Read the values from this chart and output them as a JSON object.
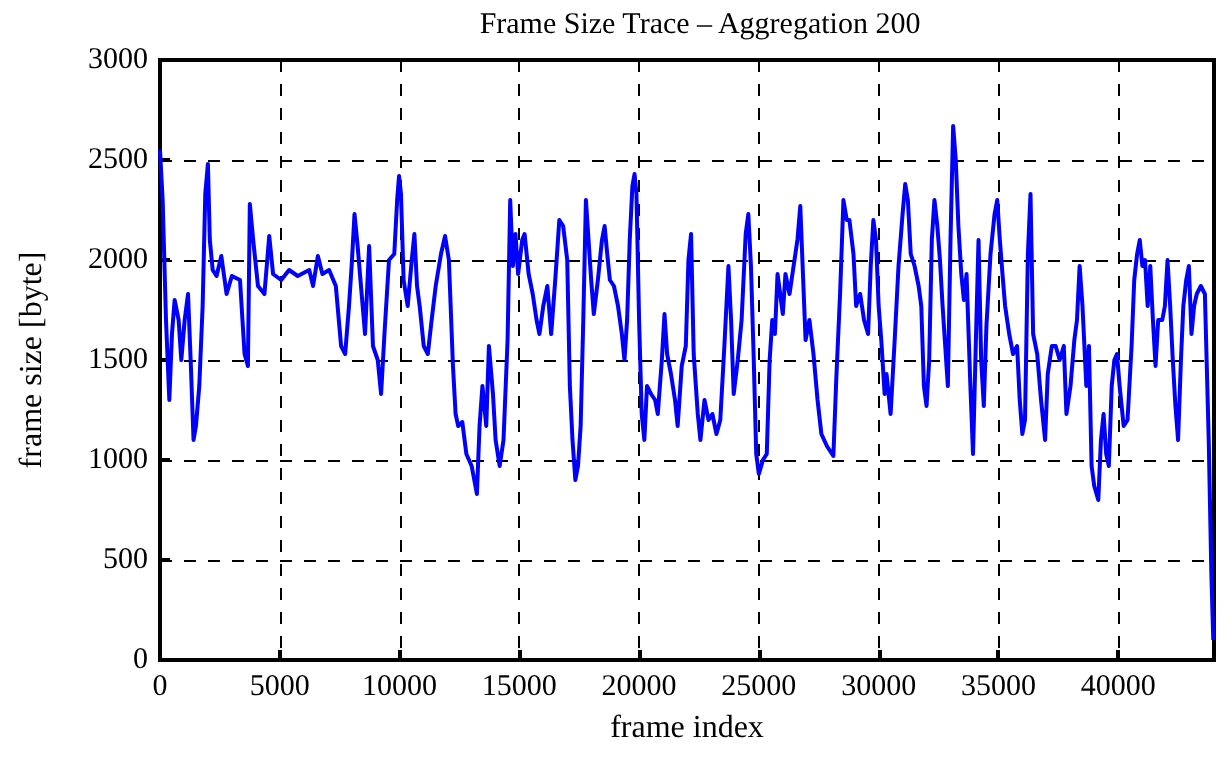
{
  "chart_data": {
    "type": "line",
    "title": "Frame Size Trace – Aggregation 200",
    "xlabel": "frame index",
    "ylabel": "frame size [byte]",
    "xlim": [
      0,
      44000
    ],
    "xticks": [
      0,
      5000,
      10000,
      15000,
      20000,
      25000,
      30000,
      35000,
      40000
    ],
    "ylim": [
      0,
      3000
    ],
    "yticks": [
      0,
      500,
      1000,
      1500,
      2000,
      2500,
      3000
    ],
    "grid": true,
    "marker": "none",
    "line_style": "solid",
    "series": [
      {
        "color": "#0000ff",
        "x": [
          0,
          111,
          250,
          389,
          500,
          611,
          778,
          889,
          1030,
          1170,
          1280,
          1400,
          1500,
          1640,
          1780,
          1890,
          2000,
          2080,
          2200,
          2360,
          2560,
          2780,
          3000,
          3340,
          3530,
          3670,
          3750,
          3890,
          4090,
          4360,
          4560,
          4720,
          5060,
          5390,
          5750,
          6230,
          6390,
          6590,
          6780,
          7060,
          7340,
          7560,
          7730,
          7890,
          8000,
          8120,
          8250,
          8390,
          8560,
          8730,
          8890,
          9090,
          9230,
          9370,
          9560,
          9780,
          9900,
          9980,
          10060,
          10170,
          10340,
          10510,
          10620,
          10730,
          10840,
          11010,
          11180,
          11340,
          11510,
          11730,
          11900,
          12060,
          12230,
          12340,
          12450,
          12620,
          12790,
          13010,
          13230,
          13340,
          13460,
          13620,
          13730,
          13900,
          14010,
          14180,
          14340,
          14510,
          14620,
          14730,
          14840,
          14950,
          15120,
          15220,
          15390,
          15560,
          15720,
          15840,
          16000,
          16170,
          16330,
          16500,
          16670,
          16830,
          17000,
          17110,
          17220,
          17340,
          17450,
          17560,
          17670,
          17780,
          17890,
          18000,
          18110,
          18280,
          18450,
          18560,
          18670,
          18780,
          18950,
          19120,
          19280,
          19390,
          19500,
          19610,
          19720,
          19810,
          19890,
          20000,
          20110,
          20220,
          20330,
          20500,
          20670,
          20780,
          20950,
          21060,
          21170,
          21330,
          21500,
          21610,
          21780,
          21950,
          22060,
          22170,
          22280,
          22450,
          22560,
          22730,
          22900,
          23060,
          23230,
          23390,
          23560,
          23730,
          23840,
          23950,
          24120,
          24280,
          24450,
          24560,
          24670,
          24780,
          24890,
          25000,
          25170,
          25330,
          25450,
          25560,
          25670,
          25780,
          25890,
          26000,
          26110,
          26280,
          26450,
          26610,
          26730,
          26840,
          26950,
          27110,
          27280,
          27450,
          27610,
          27840,
          28110,
          28230,
          28390,
          28530,
          28670,
          28780,
          28950,
          29060,
          29230,
          29390,
          29560,
          29670,
          29780,
          29890,
          30000,
          30110,
          30250,
          30330,
          30500,
          30670,
          30830,
          31000,
          31110,
          31220,
          31340,
          31500,
          31670,
          31780,
          31890,
          32000,
          32110,
          32220,
          32330,
          32450,
          32560,
          32670,
          32780,
          32890,
          33000,
          33110,
          33220,
          33330,
          33450,
          33560,
          33670,
          33830,
          33940,
          34060,
          34170,
          34280,
          34390,
          34500,
          34670,
          34840,
          34950,
          35060,
          35170,
          35280,
          35450,
          35610,
          35780,
          35890,
          36000,
          36110,
          36230,
          36340,
          36450,
          36620,
          36780,
          36950,
          37060,
          37230,
          37390,
          37560,
          37730,
          37840,
          38010,
          38170,
          38280,
          38390,
          38510,
          38670,
          38780,
          38890,
          39000,
          39170,
          39280,
          39390,
          39500,
          39610,
          39730,
          39840,
          39950,
          40060,
          40230,
          40390,
          40560,
          40670,
          40790,
          40900,
          41010,
          41120,
          41230,
          41340,
          41450,
          41560,
          41670,
          41840,
          41950,
          42060,
          42170,
          42280,
          42390,
          42500,
          42620,
          42720,
          42840,
          42950,
          43060,
          43170,
          43280,
          43450,
          43620,
          43780,
          43890,
          43970
        ],
        "values": [
          2550,
          2300,
          1700,
          1300,
          1630,
          1800,
          1700,
          1500,
          1700,
          1830,
          1500,
          1100,
          1170,
          1370,
          1770,
          2330,
          2480,
          2100,
          1950,
          1920,
          2020,
          1830,
          1920,
          1900,
          1530,
          1470,
          2280,
          2100,
          1870,
          1830,
          2120,
          1930,
          1900,
          1950,
          1920,
          1950,
          1870,
          2020,
          1930,
          1950,
          1870,
          1570,
          1530,
          1770,
          1970,
          2230,
          2070,
          1870,
          1630,
          2070,
          1570,
          1500,
          1330,
          1630,
          2000,
          2030,
          2300,
          2420,
          2330,
          1900,
          1770,
          2000,
          2130,
          1870,
          1770,
          1570,
          1530,
          1700,
          1870,
          2030,
          2120,
          2000,
          1470,
          1230,
          1170,
          1190,
          1030,
          970,
          830,
          1170,
          1370,
          1170,
          1570,
          1330,
          1100,
          970,
          1100,
          1600,
          2300,
          1970,
          2130,
          1930,
          2100,
          2130,
          1930,
          1830,
          1700,
          1630,
          1770,
          1870,
          1630,
          1900,
          2200,
          2170,
          2000,
          1370,
          1100,
          900,
          970,
          1170,
          1700,
          2300,
          2100,
          1900,
          1730,
          1900,
          2100,
          2170,
          2030,
          1900,
          1870,
          1770,
          1630,
          1500,
          1700,
          2100,
          2370,
          2430,
          2330,
          1700,
          1230,
          1100,
          1370,
          1330,
          1300,
          1230,
          1500,
          1730,
          1530,
          1430,
          1300,
          1170,
          1470,
          1570,
          2000,
          2130,
          1530,
          1230,
          1100,
          1300,
          1200,
          1230,
          1130,
          1200,
          1570,
          1970,
          1700,
          1330,
          1500,
          1700,
          2130,
          2230,
          1970,
          1530,
          1030,
          930,
          1000,
          1030,
          1500,
          1700,
          1630,
          1930,
          1830,
          1730,
          1930,
          1830,
          1970,
          2100,
          2270,
          1930,
          1600,
          1700,
          1530,
          1300,
          1130,
          1070,
          1020,
          1400,
          1830,
          2300,
          2200,
          2200,
          2030,
          1770,
          1830,
          1700,
          1630,
          1970,
          2200,
          2100,
          1770,
          1600,
          1330,
          1430,
          1230,
          1600,
          1970,
          2230,
          2380,
          2300,
          2030,
          1970,
          1870,
          1770,
          1370,
          1270,
          1500,
          2100,
          2300,
          2170,
          2000,
          1770,
          1570,
          1370,
          2100,
          2670,
          2500,
          2170,
          1930,
          1800,
          1930,
          1370,
          1030,
          1600,
          2100,
          1500,
          1270,
          1670,
          2030,
          2230,
          2300,
          2100,
          1930,
          1770,
          1630,
          1530,
          1570,
          1300,
          1130,
          1200,
          2030,
          2330,
          1630,
          1530,
          1300,
          1100,
          1430,
          1570,
          1570,
          1500,
          1570,
          1230,
          1370,
          1600,
          1700,
          1970,
          1770,
          1370,
          1570,
          970,
          870,
          800,
          1100,
          1230,
          1030,
          970,
          1370,
          1500,
          1530,
          1370,
          1170,
          1200,
          1570,
          1900,
          2030,
          2100,
          1970,
          2000,
          1770,
          1970,
          1700,
          1470,
          1700,
          1700,
          1770,
          2000,
          1770,
          1500,
          1270,
          1100,
          1500,
          1770,
          1900,
          1970,
          1630,
          1770,
          1830,
          1870,
          1830,
          1100,
          430,
          100
        ]
      }
    ]
  }
}
